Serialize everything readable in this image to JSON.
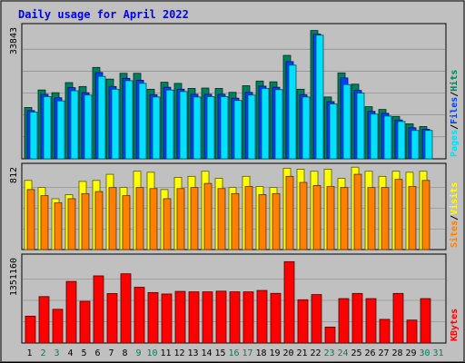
{
  "title": "Daily usage for April 2022",
  "colors": {
    "background": "#c0c0c0",
    "hits": "#00805c",
    "files": "#0040ff",
    "pages": "#00e0ff",
    "visits": "#ffff00",
    "sites": "#ff8000",
    "kbytes": "#ff0000",
    "weekday_label": "#000000",
    "weekend_label": "#00805c",
    "title": "#0000ff"
  },
  "chart_data": [
    {
      "type": "bar",
      "panel": "top",
      "y_max_label": "33843",
      "ylim": [
        0,
        33843
      ],
      "grid": true,
      "right_label": [
        {
          "text": "Pages",
          "key": "pages"
        },
        {
          "text": "/",
          "key": "sep"
        },
        {
          "text": "Files",
          "key": "files"
        },
        {
          "text": "/",
          "key": "sep"
        },
        {
          "text": "Hits",
          "key": "hits"
        }
      ],
      "categories": [
        "1",
        "2",
        "3",
        "4",
        "5",
        "6",
        "7",
        "8",
        "9",
        "10",
        "11",
        "12",
        "13",
        "14",
        "15",
        "16",
        "17",
        "18",
        "19",
        "20",
        "21",
        "22",
        "23",
        "24",
        "25",
        "26",
        "27",
        "28",
        "29",
        "30",
        "31"
      ],
      "series": [
        {
          "name": "Hits",
          "color_key": "hits",
          "values": [
            13200,
            17700,
            17000,
            19600,
            18600,
            23500,
            20500,
            22000,
            22000,
            17900,
            19700,
            19400,
            18100,
            18200,
            18100,
            17100,
            18800,
            20000,
            19800,
            26600,
            17900,
            33000,
            15900,
            22100,
            19200,
            13400,
            12700,
            10900,
            9000,
            8300,
            null
          ]
        },
        {
          "name": "Files",
          "color_key": "files",
          "values": [
            12400,
            16600,
            15700,
            18300,
            17000,
            22200,
            18600,
            20700,
            20200,
            16500,
            18400,
            17900,
            16600,
            16600,
            16600,
            15600,
            17100,
            18700,
            18400,
            25000,
            16500,
            32100,
            14700,
            20800,
            17600,
            12200,
            11700,
            10000,
            8000,
            7600,
            null
          ]
        },
        {
          "name": "Pages",
          "color_key": "pages",
          "values": [
            12000,
            16000,
            14900,
            17500,
            16400,
            21200,
            17900,
            20100,
            19400,
            15900,
            17700,
            17300,
            15900,
            16000,
            16000,
            15000,
            16400,
            18100,
            17800,
            24100,
            15900,
            31800,
            14100,
            19100,
            16900,
            11500,
            11000,
            9600,
            7300,
            7300,
            null
          ]
        }
      ]
    },
    {
      "type": "bar",
      "panel": "middle",
      "y_max_label": "812",
      "ylim": [
        0,
        812
      ],
      "grid": true,
      "right_label": [
        {
          "text": "Sites",
          "key": "sites"
        },
        {
          "text": "/",
          "key": "sep"
        },
        {
          "text": "Visits",
          "key": "visits"
        }
      ],
      "categories": [
        "1",
        "2",
        "3",
        "4",
        "5",
        "6",
        "7",
        "8",
        "9",
        "10",
        "11",
        "12",
        "13",
        "14",
        "15",
        "16",
        "17",
        "18",
        "19",
        "20",
        "21",
        "22",
        "23",
        "24",
        "25",
        "26",
        "27",
        "28",
        "29",
        "30",
        "31"
      ],
      "series": [
        {
          "name": "Visits",
          "color_key": "visits",
          "values": [
            680,
            610,
            500,
            540,
            670,
            680,
            740,
            610,
            770,
            760,
            590,
            710,
            720,
            770,
            700,
            610,
            720,
            620,
            610,
            800,
            790,
            770,
            790,
            700,
            810,
            770,
            720,
            770,
            760,
            770,
            null
          ]
        },
        {
          "name": "Sites",
          "color_key": "sites",
          "values": [
            590,
            530,
            460,
            500,
            550,
            570,
            610,
            530,
            610,
            600,
            500,
            600,
            610,
            650,
            600,
            550,
            620,
            540,
            550,
            720,
            660,
            630,
            620,
            610,
            740,
            610,
            610,
            690,
            620,
            680,
            null
          ]
        }
      ]
    },
    {
      "type": "bar",
      "panel": "bottom",
      "y_max_label": "1351160",
      "ylim": [
        0,
        1351160
      ],
      "grid": true,
      "right_label": [
        {
          "text": "KBytes",
          "key": "kbytes"
        }
      ],
      "categories": [
        "1",
        "2",
        "3",
        "4",
        "5",
        "6",
        "7",
        "8",
        "9",
        "10",
        "11",
        "12",
        "13",
        "14",
        "15",
        "16",
        "17",
        "18",
        "19",
        "20",
        "21",
        "22",
        "23",
        "24",
        "25",
        "26",
        "27",
        "28",
        "29",
        "30",
        "31"
      ],
      "series": [
        {
          "name": "KBytes",
          "color_key": "kbytes",
          "values": [
            426000,
            736000,
            535000,
            976000,
            661000,
            1064000,
            784000,
            1097000,
            884000,
            800000,
            777000,
            818000,
            811000,
            811000,
            822000,
            811000,
            811000,
            833000,
            787000,
            1289000,
            686000,
            768000,
            253000,
            704000,
            786000,
            704000,
            375000,
            786000,
            364000,
            704000,
            null
          ]
        }
      ]
    }
  ],
  "x_axis": {
    "labels": [
      "1",
      "2",
      "3",
      "4",
      "5",
      "6",
      "7",
      "8",
      "9",
      "10",
      "11",
      "12",
      "13",
      "14",
      "15",
      "16",
      "17",
      "18",
      "19",
      "20",
      "21",
      "22",
      "23",
      "24",
      "25",
      "26",
      "27",
      "28",
      "29",
      "30",
      "31"
    ],
    "weekend": [
      false,
      true,
      true,
      false,
      false,
      false,
      false,
      false,
      true,
      true,
      false,
      false,
      false,
      false,
      false,
      true,
      true,
      false,
      false,
      false,
      false,
      false,
      true,
      true,
      false,
      false,
      false,
      false,
      false,
      true,
      true
    ]
  }
}
